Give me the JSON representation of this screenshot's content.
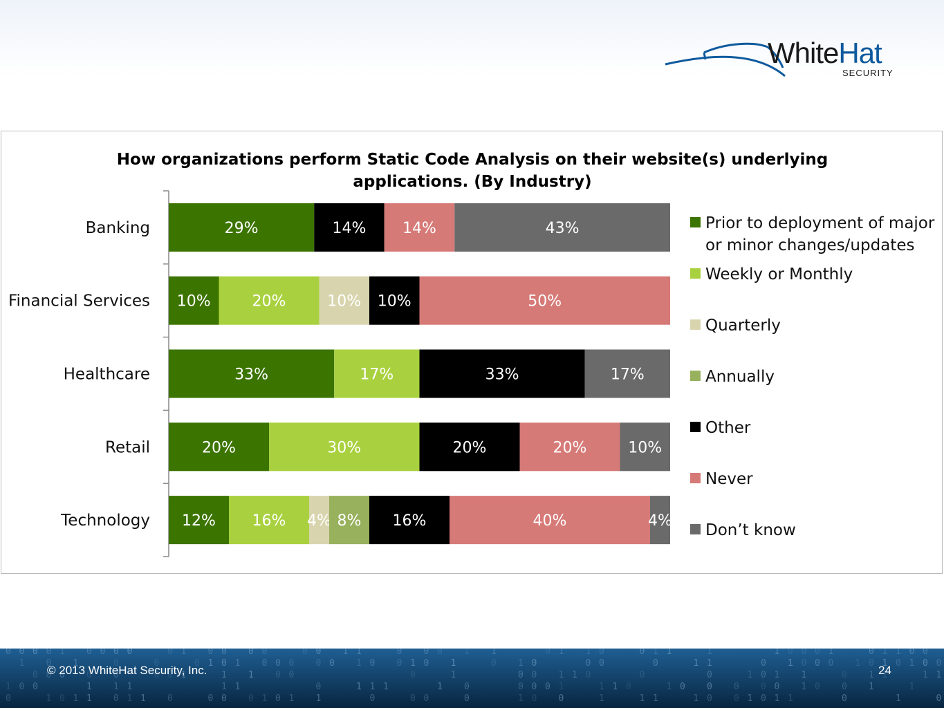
{
  "logo": {
    "brand_part1": "White",
    "brand_part2": "Hat",
    "sub": "SECURITY"
  },
  "footer": {
    "copyright": "© 2013 WhiteHat Security, Inc.",
    "page_number": "24"
  },
  "chart_data": {
    "type": "bar",
    "orientation": "horizontal",
    "stacked": true,
    "title": "How organizations perform Static Code Analysis on their website(s) underlying applications. (By Industry)",
    "title_lines": [
      "How organizations perform Static Code Analysis on their website(s) underlying",
      "applications. (By Industry)"
    ],
    "categories": [
      "Banking",
      "Financial Services",
      "Healthcare",
      "Retail",
      "Technology"
    ],
    "xlim": [
      0,
      100
    ],
    "grid": false,
    "legend_position": "right",
    "series": [
      {
        "name": "Prior to deployment of major or minor changes/updates",
        "legend_lines": [
          "Prior to deployment of major",
          "or minor changes/updates"
        ],
        "color": "#3c7400",
        "label_color": "#ffffff",
        "values": [
          29,
          10,
          33,
          20,
          12
        ]
      },
      {
        "name": "Weekly or Monthly",
        "color": "#a9d13f",
        "label_color": "#ffffff",
        "values": [
          0,
          20,
          17,
          30,
          16
        ]
      },
      {
        "name": "Quarterly",
        "color": "#d8d5ae",
        "label_color": "#ffffff",
        "values": [
          0,
          10,
          0,
          0,
          4
        ]
      },
      {
        "name": "Annually",
        "color": "#98b15d",
        "label_color": "#ffffff",
        "values": [
          0,
          0,
          0,
          0,
          8
        ]
      },
      {
        "name": "Other",
        "color": "#000000",
        "label_color": "#ffffff",
        "values": [
          14,
          10,
          33,
          20,
          16
        ]
      },
      {
        "name": "Never",
        "color": "#d67a77",
        "label_color": "#ffffff",
        "values": [
          14,
          50,
          0,
          20,
          40
        ]
      },
      {
        "name": "Don’t know",
        "color": "#6a6a6a",
        "label_color": "#ffffff",
        "values": [
          43,
          0,
          17,
          10,
          4
        ]
      }
    ]
  }
}
